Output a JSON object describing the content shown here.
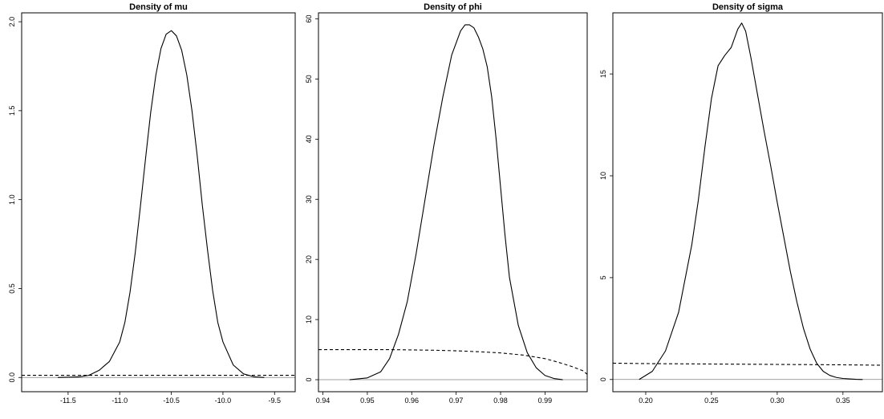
{
  "chart_data": [
    {
      "type": "line",
      "title": "Density of mu",
      "xlim": [
        -11.95,
        -9.3
      ],
      "ylim": [
        -0.08,
        2.05
      ],
      "xticks": [
        -11.5,
        -11.0,
        -10.5,
        -10.0,
        -9.5
      ],
      "xtick_labels": [
        "-11.5",
        "-11.0",
        "-10.5",
        "-10.0",
        "-9.5"
      ],
      "yticks": [
        0,
        0.5,
        1.0,
        1.5,
        2.0
      ],
      "ytick_labels": [
        "0.0",
        "0.5",
        "1.0",
        "1.5",
        "2.0"
      ],
      "baseline": 0,
      "series": [
        {
          "style": "solid",
          "x": [
            -11.6,
            -11.4,
            -11.3,
            -11.2,
            -11.1,
            -11.0,
            -10.95,
            -10.9,
            -10.85,
            -10.8,
            -10.75,
            -10.7,
            -10.65,
            -10.6,
            -10.55,
            -10.5,
            -10.45,
            -10.4,
            -10.35,
            -10.3,
            -10.25,
            -10.2,
            -10.15,
            -10.1,
            -10.05,
            -10.0,
            -9.9,
            -9.8,
            -9.7,
            -9.6
          ],
          "y": [
            0.0,
            0.003,
            0.012,
            0.04,
            0.09,
            0.2,
            0.31,
            0.48,
            0.7,
            0.96,
            1.23,
            1.49,
            1.7,
            1.85,
            1.93,
            1.95,
            1.92,
            1.84,
            1.7,
            1.5,
            1.25,
            0.97,
            0.72,
            0.49,
            0.31,
            0.2,
            0.07,
            0.02,
            0.004,
            0.0
          ]
        },
        {
          "style": "dashed",
          "x": [
            -11.95,
            -9.3
          ],
          "y": [
            0.012,
            0.012
          ]
        }
      ]
    },
    {
      "type": "line",
      "title": "Density of phi",
      "xlim": [
        0.939,
        0.9995
      ],
      "ylim": [
        -2.0,
        61
      ],
      "xticks": [
        0.94,
        0.95,
        0.96,
        0.97,
        0.98,
        0.99
      ],
      "xtick_labels": [
        "0.94",
        "0.95",
        "0.96",
        "0.97",
        "0.98",
        "0.99"
      ],
      "yticks": [
        0,
        10,
        20,
        30,
        40,
        50,
        60
      ],
      "ytick_labels": [
        "0",
        "10",
        "20",
        "30",
        "40",
        "50",
        "60"
      ],
      "baseline": 0,
      "series": [
        {
          "style": "solid",
          "x": [
            0.946,
            0.95,
            0.953,
            0.955,
            0.957,
            0.959,
            0.961,
            0.963,
            0.965,
            0.967,
            0.969,
            0.971,
            0.972,
            0.973,
            0.974,
            0.975,
            0.976,
            0.977,
            0.978,
            0.979,
            0.98,
            0.981,
            0.982,
            0.984,
            0.986,
            0.988,
            0.99,
            0.992,
            0.994
          ],
          "y": [
            0.0,
            0.3,
            1.3,
            3.5,
            7.5,
            13,
            21,
            30,
            39,
            47,
            54,
            58,
            59,
            59,
            58.5,
            57,
            55,
            52,
            47,
            40,
            32,
            24,
            17,
            9,
            4.5,
            2,
            0.7,
            0.2,
            0.0
          ]
        },
        {
          "style": "dashed",
          "x": [
            0.939,
            0.95,
            0.955,
            0.96,
            0.965,
            0.97,
            0.975,
            0.98,
            0.985,
            0.99,
            0.993,
            0.996,
            0.9985,
            0.9995
          ],
          "y": [
            5.0,
            5.0,
            5.0,
            4.95,
            4.9,
            4.8,
            4.65,
            4.45,
            4.1,
            3.5,
            2.9,
            2.2,
            1.5,
            0.9
          ]
        }
      ]
    },
    {
      "type": "line",
      "title": "Density of sigma",
      "xlim": [
        0.175,
        0.38
      ],
      "ylim": [
        -0.6,
        18.0
      ],
      "xticks": [
        0.2,
        0.25,
        0.3,
        0.35
      ],
      "xtick_labels": [
        "0.20",
        "0.25",
        "0.30",
        "0.35"
      ],
      "yticks": [
        0,
        5,
        10,
        15
      ],
      "ytick_labels": [
        "0",
        "5",
        "10",
        "15"
      ],
      "baseline": 0,
      "series": [
        {
          "style": "solid",
          "x": [
            0.195,
            0.205,
            0.215,
            0.225,
            0.235,
            0.24,
            0.245,
            0.25,
            0.255,
            0.26,
            0.265,
            0.27,
            0.273,
            0.276,
            0.28,
            0.285,
            0.29,
            0.295,
            0.3,
            0.305,
            0.31,
            0.315,
            0.32,
            0.325,
            0.33,
            0.335,
            0.34,
            0.345,
            0.35,
            0.36,
            0.365
          ],
          "y": [
            0.0,
            0.4,
            1.4,
            3.3,
            6.6,
            8.8,
            11.4,
            13.8,
            15.4,
            15.9,
            16.3,
            17.2,
            17.5,
            17.1,
            15.8,
            14.0,
            12.2,
            10.5,
            8.7,
            7.0,
            5.3,
            3.8,
            2.5,
            1.5,
            0.8,
            0.4,
            0.2,
            0.1,
            0.05,
            0.01,
            0.0
          ]
        },
        {
          "style": "dashed",
          "x": [
            0.175,
            0.2,
            0.25,
            0.3,
            0.35,
            0.38
          ],
          "y": [
            0.8,
            0.78,
            0.76,
            0.74,
            0.72,
            0.7
          ]
        }
      ]
    }
  ]
}
